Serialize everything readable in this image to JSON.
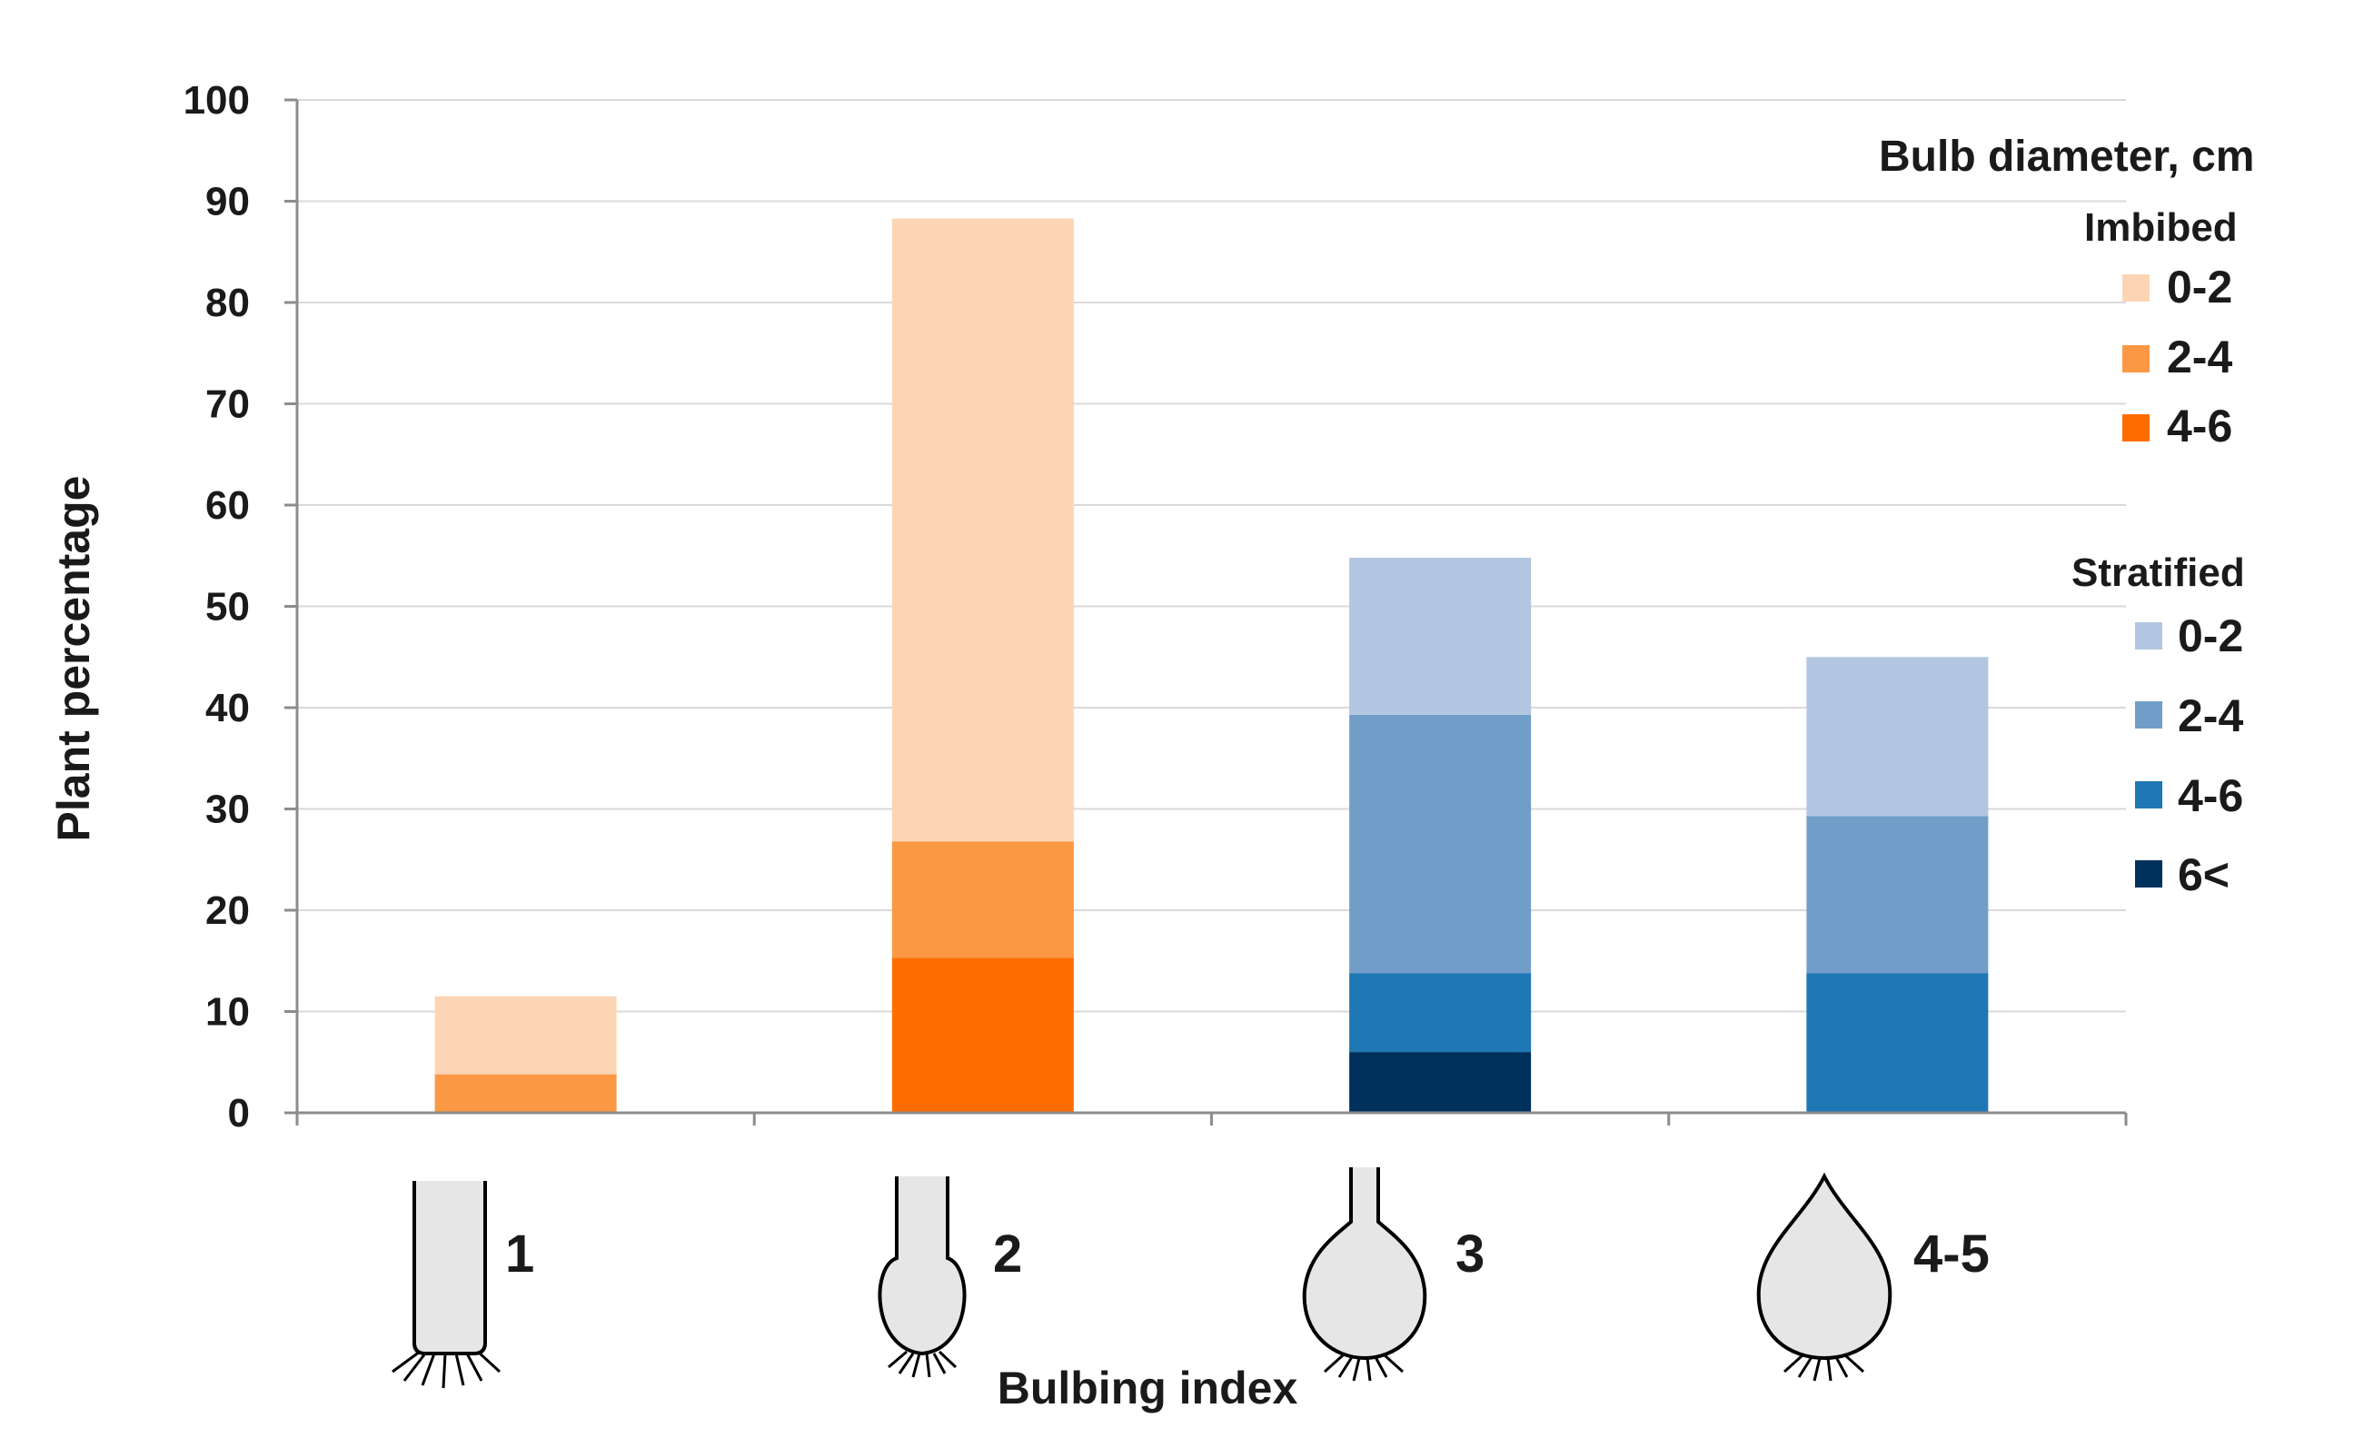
{
  "chart_data": {
    "type": "bar",
    "stacked": true,
    "title": "",
    "xlabel": "Bulbing index",
    "ylabel": "Plant percentage",
    "ylim": [
      0,
      100
    ],
    "yticks": [
      0,
      10,
      20,
      30,
      40,
      50,
      60,
      70,
      80,
      90,
      100
    ],
    "grid": true,
    "categories": [
      "1",
      "2",
      "3",
      "4-5"
    ],
    "category_icons": [
      "bulb-stage-1-icon",
      "bulb-stage-2-icon",
      "bulb-stage-3-icon",
      "bulb-stage-4-5-icon"
    ],
    "legend": {
      "title": "Bulb diameter, cm",
      "position": "right",
      "groups": [
        {
          "name": "Imbibed",
          "entries": [
            {
              "label": "0-2",
              "color": "#FCD5B5"
            },
            {
              "label": "2-4",
              "color": "#FB9844"
            },
            {
              "label": "4-6",
              "color": "#FF6D00"
            }
          ]
        },
        {
          "name": "Stratified",
          "entries": [
            {
              "label": "0-2",
              "color": "#B3C6E1"
            },
            {
              "label": "2-4",
              "color": "#719EC9"
            },
            {
              "label": "4-6",
              "color": "#1F77B4"
            },
            {
              "label": "6<",
              "color": "#00305C"
            }
          ]
        }
      ]
    },
    "series": [
      {
        "name": "Imbibed 4-6",
        "color": "#FF6D00",
        "values": [
          0,
          15.3,
          0,
          0
        ]
      },
      {
        "name": "Imbibed 2-4",
        "color": "#FB9844",
        "values": [
          3.8,
          11.5,
          0,
          0
        ]
      },
      {
        "name": "Imbibed 0-2",
        "color": "#FCD5B5",
        "values": [
          7.7,
          61.5,
          0,
          0
        ]
      },
      {
        "name": "Stratified 6<",
        "color": "#00305C",
        "values": [
          0,
          0,
          6.0,
          0
        ]
      },
      {
        "name": "Stratified 4-6",
        "color": "#1F77B4",
        "values": [
          0,
          0,
          7.8,
          13.8
        ]
      },
      {
        "name": "Stratified 2-4",
        "color": "#719EC9",
        "values": [
          0,
          0,
          25.5,
          15.5
        ]
      },
      {
        "name": "Stratified 0-2",
        "color": "#B3C6E1",
        "values": [
          0,
          0,
          15.5,
          15.7
        ]
      }
    ]
  }
}
